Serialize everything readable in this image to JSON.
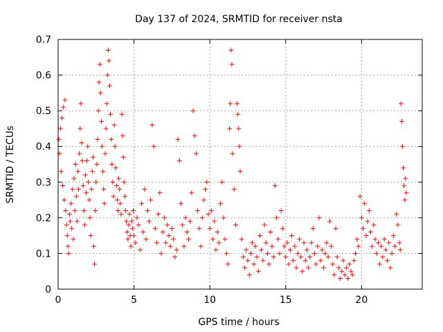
{
  "chart_data": {
    "type": "scatter",
    "title": "Day 137 of 2024, SRMTID for receiver nsta",
    "xlabel": "GPS time / hours",
    "ylabel": "SRMTID / TECUs",
    "xlim": [
      0,
      24
    ],
    "ylim": [
      0,
      0.7
    ],
    "x_ticks": [
      0,
      5,
      10,
      15,
      20
    ],
    "y_ticks": [
      0,
      0.1,
      0.2,
      0.3,
      0.4,
      0.5,
      0.6,
      0.7
    ],
    "x_tick_labels": [
      "0",
      "5",
      "10",
      "15",
      "20"
    ],
    "y_tick_labels": [
      "0",
      "0.1",
      "0.2",
      "0.3",
      "0.4",
      "0.5",
      "0.6",
      "0.7"
    ],
    "grid": true,
    "marker": "plus",
    "color": "#ff0000",
    "series": [
      {
        "name": "nsta",
        "points": [
          [
            0.05,
            0.42
          ],
          [
            0.1,
            0.38
          ],
          [
            0.15,
            0.45
          ],
          [
            0.2,
            0.33
          ],
          [
            0.25,
            0.48
          ],
          [
            0.3,
            0.29
          ],
          [
            0.35,
            0.51
          ],
          [
            0.4,
            0.25
          ],
          [
            0.45,
            0.53
          ],
          [
            0.5,
            0.22
          ],
          [
            0.55,
            0.18
          ],
          [
            0.6,
            0.15
          ],
          [
            0.65,
            0.12
          ],
          [
            0.7,
            0.1
          ],
          [
            0.75,
            0.21
          ],
          [
            0.8,
            0.19
          ],
          [
            0.85,
            0.24
          ],
          [
            0.9,
            0.17
          ],
          [
            0.95,
            0.28
          ],
          [
            1.0,
            0.14
          ],
          [
            1.05,
            0.31
          ],
          [
            1.1,
            0.22
          ],
          [
            1.15,
            0.35
          ],
          [
            1.2,
            0.26
          ],
          [
            1.25,
            0.19
          ],
          [
            1.3,
            0.33
          ],
          [
            1.35,
            0.28
          ],
          [
            1.4,
            0.38
          ],
          [
            1.45,
            0.45
          ],
          [
            1.5,
            0.52
          ],
          [
            1.55,
            0.41
          ],
          [
            1.6,
            0.36
          ],
          [
            1.65,
            0.29
          ],
          [
            1.7,
            0.22
          ],
          [
            1.75,
            0.18
          ],
          [
            1.8,
            0.32
          ],
          [
            1.85,
            0.27
          ],
          [
            1.9,
            0.36
          ],
          [
            1.95,
            0.4
          ],
          [
            2.0,
            0.3
          ],
          [
            2.05,
            0.25
          ],
          [
            2.1,
            0.2
          ],
          [
            2.15,
            0.15
          ],
          [
            2.2,
            0.28
          ],
          [
            2.25,
            0.33
          ],
          [
            2.3,
            0.37
          ],
          [
            2.35,
            0.12
          ],
          [
            2.4,
            0.07
          ],
          [
            2.45,
            0.22
          ],
          [
            2.5,
            0.3
          ],
          [
            2.55,
            0.35
          ],
          [
            2.6,
            0.42
          ],
          [
            2.65,
            0.5
          ],
          [
            2.7,
            0.58
          ],
          [
            2.75,
            0.63
          ],
          [
            2.8,
            0.55
          ],
          [
            2.85,
            0.47
          ],
          [
            2.9,
            0.4
          ],
          [
            2.95,
            0.33
          ],
          [
            3.0,
            0.28
          ],
          [
            3.05,
            0.24
          ],
          [
            3.1,
            0.38
          ],
          [
            3.15,
            0.45
          ],
          [
            3.2,
            0.52
          ],
          [
            3.25,
            0.6
          ],
          [
            3.3,
            0.67
          ],
          [
            3.35,
            0.64
          ],
          [
            3.4,
            0.57
          ],
          [
            3.45,
            0.49
          ],
          [
            3.5,
            0.42
          ],
          [
            3.55,
            0.35
          ],
          [
            3.6,
            0.3
          ],
          [
            3.65,
            0.26
          ],
          [
            3.7,
            0.46
          ],
          [
            3.75,
            0.4
          ],
          [
            3.8,
            0.34
          ],
          [
            3.85,
            0.29
          ],
          [
            3.9,
            0.25
          ],
          [
            3.95,
            0.22
          ],
          [
            4.0,
            0.31
          ],
          [
            4.05,
            0.28
          ],
          [
            4.1,
            0.24
          ],
          [
            4.15,
            0.21
          ],
          [
            4.2,
            0.49
          ],
          [
            4.25,
            0.43
          ],
          [
            4.3,
            0.37
          ],
          [
            4.35,
            0.3
          ],
          [
            4.4,
            0.26
          ],
          [
            4.45,
            0.22
          ],
          [
            4.5,
            0.19
          ],
          [
            4.55,
            0.16
          ],
          [
            4.6,
            0.14
          ],
          [
            4.65,
            0.18
          ],
          [
            4.7,
            0.21
          ],
          [
            4.75,
            0.15
          ],
          [
            4.8,
            0.12
          ],
          [
            4.85,
            0.19
          ],
          [
            4.9,
            0.17
          ],
          [
            4.95,
            0.22
          ],
          [
            5.0,
            0.15
          ],
          [
            5.1,
            0.13
          ],
          [
            5.2,
            0.2
          ],
          [
            5.3,
            0.18
          ],
          [
            5.4,
            0.11
          ],
          [
            5.5,
            0.24
          ],
          [
            5.6,
            0.16
          ],
          [
            5.7,
            0.28
          ],
          [
            5.8,
            0.14
          ],
          [
            5.9,
            0.22
          ],
          [
            6.0,
            0.19
          ],
          [
            6.1,
            0.25
          ],
          [
            6.2,
            0.46
          ],
          [
            6.3,
            0.4
          ],
          [
            6.4,
            0.17
          ],
          [
            6.5,
            0.13
          ],
          [
            6.6,
            0.21
          ],
          [
            6.7,
            0.27
          ],
          [
            6.8,
            0.1
          ],
          [
            6.9,
            0.16
          ],
          [
            7.0,
            0.2
          ],
          [
            7.1,
            0.13
          ],
          [
            7.2,
            0.18
          ],
          [
            7.3,
            0.15
          ],
          [
            7.4,
            0.12
          ],
          [
            7.5,
            0.17
          ],
          [
            7.6,
            0.14
          ],
          [
            7.7,
            0.09
          ],
          [
            7.8,
            0.11
          ],
          [
            7.9,
            0.42
          ],
          [
            8.0,
            0.36
          ],
          [
            8.1,
            0.24
          ],
          [
            8.2,
            0.18
          ],
          [
            8.3,
            0.12
          ],
          [
            8.4,
            0.2
          ],
          [
            8.5,
            0.16
          ],
          [
            8.6,
            0.14
          ],
          [
            8.7,
            0.19
          ],
          [
            8.8,
            0.27
          ],
          [
            8.9,
            0.5
          ],
          [
            9.0,
            0.43
          ],
          [
            9.1,
            0.38
          ],
          [
            9.2,
            0.22
          ],
          [
            9.3,
            0.17
          ],
          [
            9.4,
            0.12
          ],
          [
            9.5,
            0.2
          ],
          [
            9.6,
            0.25
          ],
          [
            9.7,
            0.28
          ],
          [
            9.8,
            0.3
          ],
          [
            9.9,
            0.21
          ],
          [
            10.0,
            0.17
          ],
          [
            10.1,
            0.22
          ],
          [
            10.2,
            0.14
          ],
          [
            10.3,
            0.19
          ],
          [
            10.4,
            0.11
          ],
          [
            10.5,
            0.16
          ],
          [
            10.6,
            0.13
          ],
          [
            10.7,
            0.24
          ],
          [
            10.8,
            0.3
          ],
          [
            10.9,
            0.2
          ],
          [
            11.0,
            0.14
          ],
          [
            11.1,
            0.1
          ],
          [
            11.2,
            0.07
          ],
          [
            11.3,
            0.45
          ],
          [
            11.35,
            0.52
          ],
          [
            11.4,
            0.67
          ],
          [
            11.45,
            0.63
          ],
          [
            11.5,
            0.38
          ],
          [
            11.6,
            0.28
          ],
          [
            11.7,
            0.18
          ],
          [
            11.8,
            0.52
          ],
          [
            11.85,
            0.49
          ],
          [
            11.9,
            0.45
          ],
          [
            11.95,
            0.4
          ],
          [
            12.0,
            0.33
          ],
          [
            12.1,
            0.14
          ],
          [
            12.2,
            0.09
          ],
          [
            12.3,
            0.06
          ],
          [
            12.4,
            0.11
          ],
          [
            12.5,
            0.08
          ],
          [
            12.6,
            0.04
          ],
          [
            12.7,
            0.1
          ],
          [
            12.8,
            0.13
          ],
          [
            12.9,
            0.07
          ],
          [
            13.0,
            0.12
          ],
          [
            13.1,
            0.09
          ],
          [
            13.2,
            0.05
          ],
          [
            13.3,
            0.15
          ],
          [
            13.4,
            0.11
          ],
          [
            13.5,
            0.08
          ],
          [
            13.6,
            0.18
          ],
          [
            13.7,
            0.13
          ],
          [
            13.8,
            0.1
          ],
          [
            13.9,
            0.07
          ],
          [
            14.0,
            0.16
          ],
          [
            14.1,
            0.12
          ],
          [
            14.2,
            0.09
          ],
          [
            14.3,
            0.29
          ],
          [
            14.4,
            0.2
          ],
          [
            14.5,
            0.14
          ],
          [
            14.6,
            0.1
          ],
          [
            14.7,
            0.22
          ],
          [
            14.8,
            0.17
          ],
          [
            14.9,
            0.12
          ],
          [
            15.0,
            0.09
          ],
          [
            15.1,
            0.13
          ],
          [
            15.2,
            0.07
          ],
          [
            15.3,
            0.11
          ],
          [
            15.4,
            0.15
          ],
          [
            15.5,
            0.08
          ],
          [
            15.6,
            0.12
          ],
          [
            15.7,
            0.06
          ],
          [
            15.8,
            0.1
          ],
          [
            15.9,
            0.14
          ],
          [
            16.0,
            0.09
          ],
          [
            16.1,
            0.05
          ],
          [
            16.2,
            0.13
          ],
          [
            16.3,
            0.08
          ],
          [
            16.4,
            0.11
          ],
          [
            16.5,
            0.06
          ],
          [
            16.6,
            0.09
          ],
          [
            16.7,
            0.13
          ],
          [
            16.8,
            0.17
          ],
          [
            16.9,
            0.1
          ],
          [
            17.0,
            0.07
          ],
          [
            17.1,
            0.12
          ],
          [
            17.2,
            0.2
          ],
          [
            17.3,
            0.08
          ],
          [
            17.4,
            0.11
          ],
          [
            17.5,
            0.06
          ],
          [
            17.6,
            0.1
          ],
          [
            17.7,
            0.13
          ],
          [
            17.8,
            0.09
          ],
          [
            17.9,
            0.19
          ],
          [
            18.0,
            0.12
          ],
          [
            18.1,
            0.07
          ],
          [
            18.2,
            0.04
          ],
          [
            18.3,
            0.17
          ],
          [
            18.4,
            0.09
          ],
          [
            18.5,
            0.06
          ],
          [
            18.6,
            0.03
          ],
          [
            18.7,
            0.05
          ],
          [
            18.8,
            0.08
          ],
          [
            18.9,
            0.04
          ],
          [
            19.0,
            0.06
          ],
          [
            19.1,
            0.03
          ],
          [
            19.2,
            0.07
          ],
          [
            19.3,
            0.05
          ],
          [
            19.4,
            0.04
          ],
          [
            19.5,
            0.08
          ],
          [
            19.6,
            0.1
          ],
          [
            19.7,
            0.14
          ],
          [
            19.8,
            0.12
          ],
          [
            19.9,
            0.26
          ],
          [
            20.0,
            0.2
          ],
          [
            20.1,
            0.17
          ],
          [
            20.2,
            0.24
          ],
          [
            20.3,
            0.15
          ],
          [
            20.4,
            0.19
          ],
          [
            20.5,
            0.22
          ],
          [
            20.6,
            0.16
          ],
          [
            20.7,
            0.12
          ],
          [
            20.8,
            0.18
          ],
          [
            20.9,
            0.14
          ],
          [
            21.0,
            0.1
          ],
          [
            21.1,
            0.13
          ],
          [
            21.2,
            0.07
          ],
          [
            21.3,
            0.12
          ],
          [
            21.4,
            0.09
          ],
          [
            21.5,
            0.14
          ],
          [
            21.6,
            0.11
          ],
          [
            21.7,
            0.08
          ],
          [
            21.8,
            0.13
          ],
          [
            21.9,
            0.06
          ],
          [
            22.0,
            0.1
          ],
          [
            22.1,
            0.15
          ],
          [
            22.2,
            0.12
          ],
          [
            22.3,
            0.21
          ],
          [
            22.4,
            0.18
          ],
          [
            22.5,
            0.13
          ],
          [
            22.55,
            0.11
          ],
          [
            22.6,
            0.52
          ],
          [
            22.65,
            0.47
          ],
          [
            22.7,
            0.4
          ],
          [
            22.75,
            0.34
          ],
          [
            22.8,
            0.29
          ],
          [
            22.85,
            0.25
          ],
          [
            22.9,
            0.31
          ],
          [
            22.95,
            0.27
          ]
        ]
      }
    ]
  }
}
